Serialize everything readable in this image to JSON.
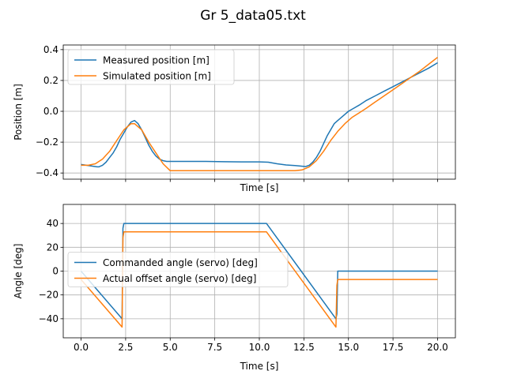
{
  "figure": {
    "title": "Gr 5_data05.txt"
  },
  "chart_data": [
    {
      "type": "line",
      "xlabel": "Time [s]",
      "ylabel": "Position [m]",
      "xlim": [
        -1,
        21
      ],
      "ylim": [
        -0.44,
        0.43
      ],
      "xticks": [
        0,
        2.5,
        5,
        7.5,
        10,
        12.5,
        15,
        17.5,
        20
      ],
      "yticks": [
        -0.4,
        -0.2,
        0.0,
        0.2,
        0.4
      ],
      "ytick_labels": [
        "−0.4",
        "−0.2",
        "0.0",
        "0.2",
        "0.4"
      ],
      "show_xtick_labels": false,
      "grid": true,
      "legend_loc": "upper-left",
      "series": [
        {
          "name": "Measured position [m]",
          "color": "#1f77b4",
          "x": [
            0,
            0.3,
            0.6,
            0.9,
            1.0,
            1.2,
            1.4,
            1.6,
            1.8,
            2.0,
            2.2,
            2.4,
            2.6,
            2.8,
            3.0,
            3.2,
            3.4,
            3.6,
            3.8,
            4.0,
            4.2,
            4.4,
            4.6,
            4.8,
            5.0,
            6,
            7,
            8,
            9,
            10,
            10.5,
            11,
            11.5,
            12,
            12.3,
            12.6,
            12.8,
            13.0,
            13.2,
            13.4,
            13.6,
            13.8,
            14.0,
            14.2,
            14.4,
            14.6,
            14.8,
            15.0,
            15.3,
            15.6,
            16,
            16.5,
            17,
            17.5,
            18,
            18.5,
            19,
            19.5,
            20
          ],
          "y": [
            -0.345,
            -0.35,
            -0.355,
            -0.36,
            -0.36,
            -0.35,
            -0.33,
            -0.3,
            -0.27,
            -0.23,
            -0.18,
            -0.14,
            -0.1,
            -0.07,
            -0.06,
            -0.08,
            -0.12,
            -0.17,
            -0.22,
            -0.26,
            -0.29,
            -0.31,
            -0.32,
            -0.325,
            -0.325,
            -0.325,
            -0.325,
            -0.327,
            -0.328,
            -0.328,
            -0.33,
            -0.34,
            -0.348,
            -0.352,
            -0.355,
            -0.358,
            -0.35,
            -0.33,
            -0.3,
            -0.26,
            -0.21,
            -0.16,
            -0.12,
            -0.08,
            -0.06,
            -0.04,
            -0.02,
            0.0,
            0.02,
            0.04,
            0.07,
            0.1,
            0.13,
            0.16,
            0.19,
            0.22,
            0.25,
            0.28,
            0.315
          ]
        },
        {
          "name": "Simulated position [m]",
          "color": "#ff7f0e",
          "x": [
            0,
            0.4,
            0.8,
            1.2,
            1.6,
            2.0,
            2.4,
            2.8,
            3.0,
            3.4,
            3.8,
            4.2,
            4.6,
            5.0,
            6,
            7,
            8,
            9,
            10,
            11,
            12,
            12.4,
            12.8,
            13.2,
            13.6,
            14.0,
            14.4,
            14.8,
            15.2,
            15.6,
            16,
            16.5,
            17,
            17.5,
            18,
            18.5,
            19,
            19.5,
            20
          ],
          "y": [
            -0.35,
            -0.35,
            -0.34,
            -0.31,
            -0.26,
            -0.19,
            -0.12,
            -0.08,
            -0.08,
            -0.12,
            -0.2,
            -0.27,
            -0.34,
            -0.385,
            -0.385,
            -0.385,
            -0.385,
            -0.385,
            -0.385,
            -0.385,
            -0.385,
            -0.38,
            -0.36,
            -0.32,
            -0.26,
            -0.19,
            -0.13,
            -0.08,
            -0.04,
            -0.01,
            0.02,
            0.06,
            0.1,
            0.14,
            0.18,
            0.22,
            0.26,
            0.305,
            0.35
          ]
        }
      ]
    },
    {
      "type": "line",
      "xlabel": "Time [s]",
      "ylabel": "Angle [deg]",
      "xlim": [
        -1,
        21
      ],
      "ylim": [
        -56,
        56
      ],
      "xticks": [
        0,
        2.5,
        5,
        7.5,
        10,
        12.5,
        15,
        17.5,
        20
      ],
      "xtick_labels": [
        "0.0",
        "2.5",
        "5.0",
        "7.5",
        "10.0",
        "12.5",
        "15.0",
        "17.5",
        "20.0"
      ],
      "yticks": [
        -40,
        -20,
        0,
        20,
        40
      ],
      "ytick_labels": [
        "−40",
        "−20",
        "0",
        "20",
        "40"
      ],
      "grid": true,
      "legend_loc": "center-left",
      "series": [
        {
          "name": "Commanded angle (servo) [deg]",
          "color": "#1f77b4",
          "x": [
            0,
            2.3,
            2.35,
            2.4,
            10.4,
            14.3,
            14.35,
            14.4,
            20
          ],
          "y": [
            0,
            -40,
            36,
            40,
            40,
            -40,
            -36,
            0,
            0
          ]
        },
        {
          "name": "Actual offset angle (servo) [deg]",
          "color": "#ff7f0e",
          "x": [
            0,
            2.3,
            2.35,
            2.4,
            10.4,
            14.3,
            14.35,
            14.4,
            20
          ],
          "y": [
            -7,
            -47,
            28,
            33,
            33,
            -47,
            -12,
            -7,
            -7
          ]
        }
      ]
    }
  ]
}
